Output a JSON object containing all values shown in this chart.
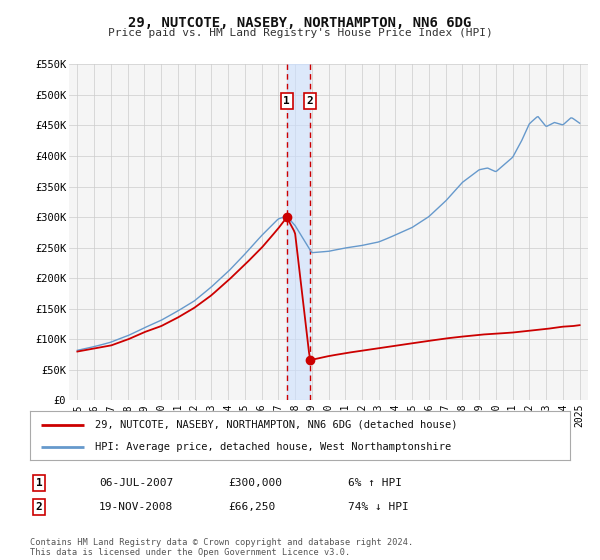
{
  "title": "29, NUTCOTE, NASEBY, NORTHAMPTON, NN6 6DG",
  "subtitle": "Price paid vs. HM Land Registry's House Price Index (HPI)",
  "legend_line1": "29, NUTCOTE, NASEBY, NORTHAMPTON, NN6 6DG (detached house)",
  "legend_line2": "HPI: Average price, detached house, West Northamptonshire",
  "transaction1_date": "06-JUL-2007",
  "transaction1_price": 300000,
  "transaction1_label": "6% ↑ HPI",
  "transaction2_date": "19-NOV-2008",
  "transaction2_price": 66250,
  "transaction2_label": "74% ↓ HPI",
  "marker1_x": 2007.51,
  "marker2_x": 2008.89,
  "price_color": "#cc0000",
  "hpi_color": "#6699cc",
  "background_color": "#ffffff",
  "grid_color": "#cccccc",
  "footer": "Contains HM Land Registry data © Crown copyright and database right 2024.\nThis data is licensed under the Open Government Licence v3.0.",
  "ylim": [
    0,
    550000
  ],
  "yticks": [
    0,
    50000,
    100000,
    150000,
    200000,
    250000,
    300000,
    350000,
    400000,
    450000,
    500000,
    550000
  ],
  "ytick_labels": [
    "£0",
    "£50K",
    "£100K",
    "£150K",
    "£200K",
    "£250K",
    "£300K",
    "£350K",
    "£400K",
    "£450K",
    "£500K",
    "£550K"
  ],
  "xlim_start": 1994.5,
  "xlim_end": 2025.5,
  "xticks": [
    1995,
    1996,
    1997,
    1998,
    1999,
    2000,
    2001,
    2002,
    2003,
    2004,
    2005,
    2006,
    2007,
    2008,
    2009,
    2010,
    2011,
    2012,
    2013,
    2014,
    2015,
    2016,
    2017,
    2018,
    2019,
    2020,
    2021,
    2022,
    2023,
    2024,
    2025
  ],
  "hpi_knots_x": [
    1995,
    1996,
    1997,
    1998,
    1999,
    2000,
    2001,
    2002,
    2003,
    2004,
    2005,
    2006,
    2007,
    2007.5,
    2008,
    2009,
    2010,
    2011,
    2012,
    2013,
    2014,
    2015,
    2016,
    2017,
    2018,
    2019,
    2019.5,
    2020,
    2021,
    2021.5,
    2022,
    2022.5,
    2023,
    2023.5,
    2024,
    2024.5,
    2025
  ],
  "hpi_knots_y": [
    82000,
    88000,
    95000,
    105000,
    118000,
    130000,
    145000,
    162000,
    185000,
    210000,
    238000,
    268000,
    295000,
    300000,
    285000,
    240000,
    242000,
    248000,
    252000,
    258000,
    270000,
    282000,
    300000,
    325000,
    355000,
    375000,
    378000,
    372000,
    395000,
    420000,
    450000,
    462000,
    445000,
    452000,
    448000,
    460000,
    452000
  ],
  "price_knots_x": [
    1995,
    1996,
    1997,
    1998,
    1999,
    2000,
    2001,
    2002,
    2003,
    2004,
    2005,
    2006,
    2007.0,
    2007.51,
    2008.0,
    2008.89,
    2009.5,
    2010,
    2011,
    2012,
    2013,
    2014,
    2015,
    2016,
    2017,
    2018,
    2019,
    2020,
    2021,
    2022,
    2023,
    2024,
    2025
  ],
  "price_knots_y": [
    80000,
    85000,
    90000,
    100000,
    112000,
    122000,
    136000,
    152000,
    172000,
    196000,
    222000,
    250000,
    282000,
    300000,
    275000,
    66250,
    70000,
    73000,
    78000,
    82000,
    86000,
    90000,
    94000,
    98000,
    102000,
    105000,
    108000,
    110000,
    112000,
    115000,
    118000,
    122000,
    124000
  ]
}
